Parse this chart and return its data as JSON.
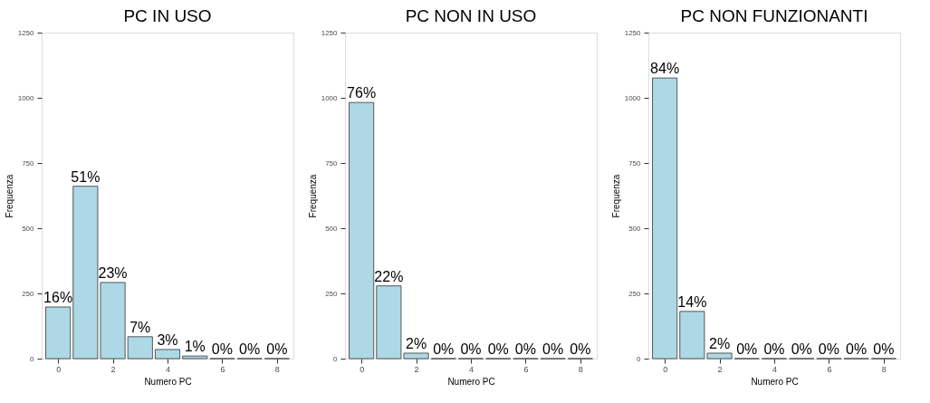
{
  "chart_data": [
    {
      "type": "bar",
      "title": "PC IN USO",
      "xlabel": "Numero PC",
      "ylabel": "Frequenza",
      "x": [
        0,
        1,
        2,
        3,
        4,
        5,
        6,
        7,
        8
      ],
      "values": [
        198,
        661,
        292,
        84,
        35,
        10,
        0,
        0,
        0
      ],
      "color": "#add8e6",
      "xlim": [
        -0.6,
        8.6
      ],
      "xticks": [
        0,
        2,
        4,
        6,
        8
      ],
      "ylim": [
        0,
        1250
      ],
      "yticks": [
        0,
        250,
        500,
        750,
        1000,
        1250
      ],
      "grid": false,
      "annotations": [
        {
          "text": "16%",
          "x": 0,
          "y": 198
        },
        {
          "text": "51%",
          "x": 1,
          "y": 661
        },
        {
          "text": "23%",
          "x": 2,
          "y": 292
        },
        {
          "text": "7%",
          "x": 3,
          "y": 84
        },
        {
          "text": "3%",
          "x": 4,
          "y": 35
        },
        {
          "text": "1%",
          "x": 5,
          "y": 10
        },
        {
          "text": "0%",
          "x": 6,
          "y": 0
        },
        {
          "text": "0%",
          "x": 7,
          "y": 0
        },
        {
          "text": "0%",
          "x": 8,
          "y": 0
        }
      ]
    },
    {
      "type": "bar",
      "title": "PC NON IN USO",
      "xlabel": "Numero PC",
      "ylabel": "Frequenza",
      "x": [
        0,
        1,
        2,
        3,
        4,
        5,
        6,
        7,
        8
      ],
      "values": [
        982,
        279,
        21,
        0,
        0,
        0,
        0,
        0,
        0
      ],
      "color": "#add8e6",
      "xlim": [
        -0.6,
        8.6
      ],
      "xticks": [
        0,
        2,
        4,
        6,
        8
      ],
      "ylim": [
        0,
        1250
      ],
      "yticks": [
        0,
        250,
        500,
        750,
        1000,
        1250
      ],
      "grid": false,
      "annotations": [
        {
          "text": "76%",
          "x": 0,
          "y": 982
        },
        {
          "text": "22%",
          "x": 1,
          "y": 279
        },
        {
          "text": "2%",
          "x": 2,
          "y": 21
        },
        {
          "text": "0%",
          "x": 3,
          "y": 0
        },
        {
          "text": "0%",
          "x": 4,
          "y": 0
        },
        {
          "text": "0%",
          "x": 5,
          "y": 0
        },
        {
          "text": "0%",
          "x": 6,
          "y": 0
        },
        {
          "text": "0%",
          "x": 7,
          "y": 0
        },
        {
          "text": "0%",
          "x": 8,
          "y": 0
        }
      ]
    },
    {
      "type": "bar",
      "title": "PC NON FUNZIONANTI",
      "xlabel": "Numero PC",
      "ylabel": "Frequenza",
      "x": [
        0,
        1,
        2,
        3,
        4,
        5,
        6,
        7,
        8
      ],
      "values": [
        1076,
        181,
        21,
        0,
        0,
        0,
        0,
        0,
        0
      ],
      "color": "#add8e6",
      "xlim": [
        -0.6,
        8.6
      ],
      "xticks": [
        0,
        2,
        4,
        6,
        8
      ],
      "ylim": [
        0,
        1250
      ],
      "yticks": [
        0,
        250,
        500,
        750,
        1000,
        1250
      ],
      "grid": false,
      "annotations": [
        {
          "text": "84%",
          "x": 0,
          "y": 1076
        },
        {
          "text": "14%",
          "x": 1,
          "y": 181
        },
        {
          "text": "2%",
          "x": 2,
          "y": 21
        },
        {
          "text": "0%",
          "x": 3,
          "y": 0
        },
        {
          "text": "0%",
          "x": 4,
          "y": 0
        },
        {
          "text": "0%",
          "x": 5,
          "y": 0
        },
        {
          "text": "0%",
          "x": 6,
          "y": 0
        },
        {
          "text": "0%",
          "x": 7,
          "y": 0
        },
        {
          "text": "0%",
          "x": 8,
          "y": 0
        }
      ]
    }
  ]
}
